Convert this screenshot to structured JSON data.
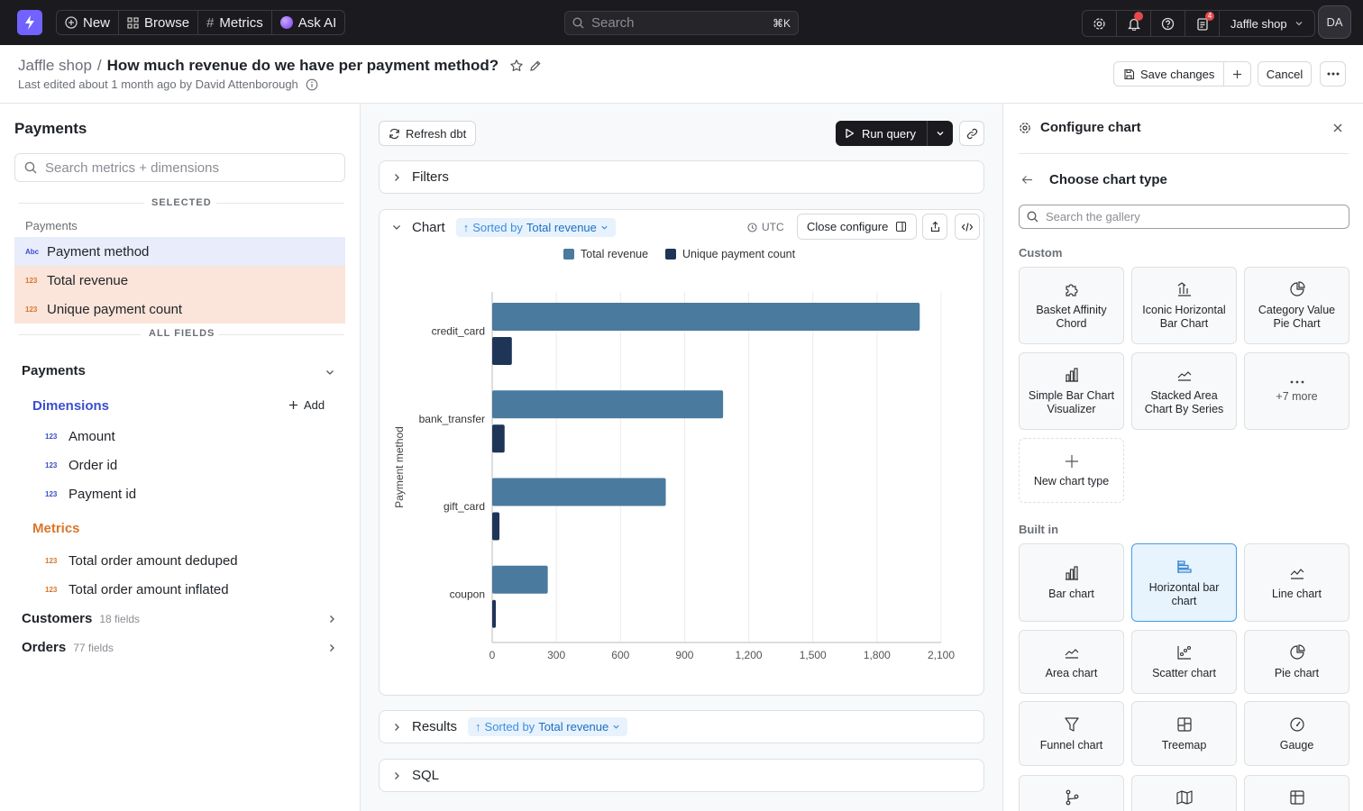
{
  "topbar": {
    "nav": [
      {
        "label": "New",
        "icon": "plus-circle-icon"
      },
      {
        "label": "Browse",
        "icon": "grid-icon"
      },
      {
        "label": "Metrics",
        "icon": "hash-icon"
      },
      {
        "label": "Ask AI",
        "icon": "ai-orb-icon"
      }
    ],
    "search_placeholder": "Search",
    "search_shortcut": "⌘K",
    "notifications_badge": "4",
    "project": "Jaffle shop",
    "avatar": "DA"
  },
  "header": {
    "breadcrumb_space": "Jaffle shop",
    "breadcrumb_sep": "/",
    "title": "How much revenue do we have per payment method?",
    "subtitle": "Last edited about 1 month ago by David Attenborough",
    "save_label": "Save changes",
    "cancel_label": "Cancel"
  },
  "left": {
    "title": "Payments",
    "search_placeholder": "Search metrics + dimensions",
    "selected_label": "SELECTED",
    "selected_group": "Payments",
    "selected": [
      {
        "tag": "Abc",
        "label": "Payment method",
        "kind": "dimension"
      },
      {
        "tag": "123",
        "label": "Total revenue",
        "kind": "metric"
      },
      {
        "tag": "123",
        "label": "Unique payment count",
        "kind": "metric"
      }
    ],
    "all_fields_label": "ALL FIELDS",
    "table": "Payments",
    "dimensions_label": "Dimensions",
    "add_label": "Add",
    "dimensions": [
      {
        "tag": "123",
        "label": "Amount"
      },
      {
        "tag": "123",
        "label": "Order id"
      },
      {
        "tag": "123",
        "label": "Payment id"
      }
    ],
    "metrics_label": "Metrics",
    "metrics": [
      {
        "tag": "123",
        "label": "Total order amount deduped"
      },
      {
        "tag": "123",
        "label": "Total order amount inflated"
      }
    ],
    "other_tables": [
      {
        "name": "Customers",
        "count": "18 fields"
      },
      {
        "name": "Orders",
        "count": "77 fields"
      }
    ]
  },
  "mid": {
    "refresh_label": "Refresh dbt",
    "run_label": "Run query",
    "filters_label": "Filters",
    "chart_label": "Chart",
    "sorted_by_prefix": "Sorted by",
    "sorted_by_field": "Total revenue",
    "timezone": "UTC",
    "close_configure_label": "Close configure",
    "results_label": "Results",
    "sql_label": "SQL"
  },
  "chart_data": {
    "type": "bar",
    "orientation": "horizontal",
    "categories": [
      "credit_card",
      "bank_transfer",
      "gift_card",
      "coupon"
    ],
    "series": [
      {
        "name": "Total revenue",
        "values": [
          2000,
          1080,
          812,
          260
        ],
        "color": "#4a7a9e"
      },
      {
        "name": "Unique payment count",
        "values": [
          92,
          58,
          34,
          17
        ],
        "color": "#1f3557"
      }
    ],
    "ylabel": "Payment method",
    "xlim": [
      0,
      2100
    ],
    "xticks": [
      "0",
      "300",
      "600",
      "900",
      "1,200",
      "1,500",
      "1,800",
      "2,100"
    ],
    "grid": true,
    "legend": "top-center"
  },
  "right": {
    "title": "Configure chart",
    "subtitle": "Choose chart type",
    "search_placeholder": "Search the gallery",
    "custom_label": "Custom",
    "custom": [
      {
        "label": "Basket Affinity Chord",
        "icon": "puzzle-icon"
      },
      {
        "label": "Iconic Horizontal Bar Chart",
        "icon": "bar-chart-up-icon"
      },
      {
        "label": "Category Value Pie Chart",
        "icon": "pie-chart-icon"
      },
      {
        "label": "Simple Bar Chart Visualizer",
        "icon": "bar-chart-icon"
      },
      {
        "label": "Stacked Area Chart By Series",
        "icon": "area-chart-icon"
      },
      {
        "label": "+7 more",
        "icon": "dots-icon"
      }
    ],
    "new_chart_label": "New chart type",
    "builtin_label": "Built in",
    "builtin": [
      {
        "label": "Bar chart",
        "icon": "bar-chart-icon"
      },
      {
        "label": "Horizontal bar chart",
        "icon": "horizontal-bar-icon"
      },
      {
        "label": "Line chart",
        "icon": "line-chart-icon"
      },
      {
        "label": "Area chart",
        "icon": "area-chart-icon"
      },
      {
        "label": "Scatter chart",
        "icon": "scatter-chart-icon"
      },
      {
        "label": "Pie chart",
        "icon": "pie-chart-icon"
      },
      {
        "label": "Funnel chart",
        "icon": "funnel-icon"
      },
      {
        "label": "Treemap",
        "icon": "treemap-icon"
      },
      {
        "label": "Gauge",
        "icon": "gauge-icon"
      }
    ],
    "selected_builtin": "Horizontal bar chart"
  },
  "colors": {
    "accent": "#7262ff",
    "dimension": "#3b4ecf",
    "metric": "#d9762a",
    "selected_metric_bg": "#fbe4d9",
    "selected_dim_bg": "#e8ecfb"
  }
}
